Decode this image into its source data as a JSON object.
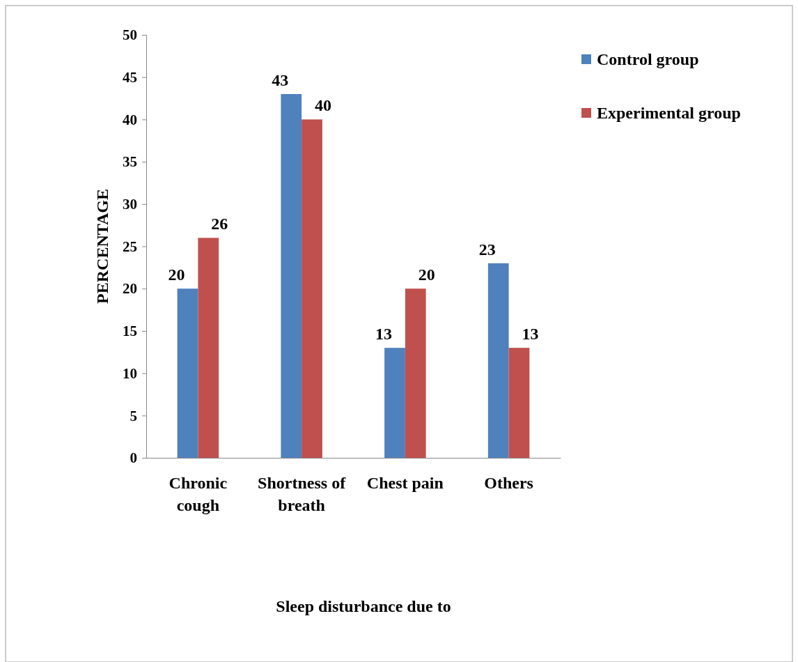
{
  "chart_data": {
    "type": "bar",
    "xlabel": "Sleep disturbance due to",
    "ylabel": "PERCENTAGE",
    "categories": [
      "Chronic cough",
      "Shortness of breath",
      "Chest pain",
      "Others"
    ],
    "series": [
      {
        "name": "Control group",
        "color": "#4f81bd",
        "values": [
          20,
          43,
          13,
          23
        ]
      },
      {
        "name": "Experimental group",
        "color": "#c0504d",
        "values": [
          26,
          40,
          20,
          13
        ]
      }
    ],
    "ylim": [
      0,
      50
    ],
    "yticks": [
      0,
      5,
      10,
      15,
      20,
      25,
      30,
      35,
      40,
      45,
      50
    ],
    "grid": false,
    "legend": "right",
    "data_labels": true
  }
}
